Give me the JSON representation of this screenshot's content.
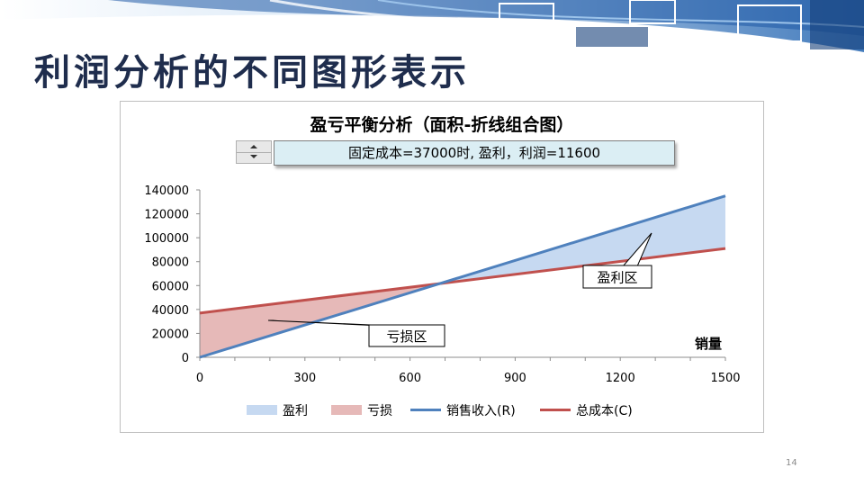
{
  "slide": {
    "title": "利润分析的不同图形表示",
    "page_number": "14"
  },
  "controls": {
    "status_text": "固定成本=37000时, 盈利，利润=11600"
  },
  "chart_data": {
    "type": "area",
    "title": "盈亏平衡分析（面积-折线组合图）",
    "xlabel": "销量",
    "ylabel": "",
    "x": [
      0,
      1500
    ],
    "xlim": [
      0,
      1500
    ],
    "ylim": [
      0,
      140000
    ],
    "x_ticks": [
      "0",
      "300",
      "600",
      "900",
      "1200",
      "1500"
    ],
    "y_ticks": [
      "0",
      "20000",
      "40000",
      "60000",
      "80000",
      "100000",
      "120000",
      "140000"
    ],
    "grid": false,
    "legend_position": "bottom",
    "series": [
      {
        "name": "盈利",
        "kind": "area",
        "color": "#c6d9f1"
      },
      {
        "name": "亏损",
        "kind": "area",
        "color": "#e6b9b8"
      },
      {
        "name": "销售收入(R)",
        "kind": "line",
        "color": "#4f81bd",
        "values": [
          0,
          135000
        ]
      },
      {
        "name": "总成本(C)",
        "kind": "line",
        "color": "#c0504d",
        "values": [
          37000,
          91000
        ]
      }
    ],
    "annotations": {
      "loss_region": "亏损区",
      "profit_region": "盈利区"
    }
  }
}
